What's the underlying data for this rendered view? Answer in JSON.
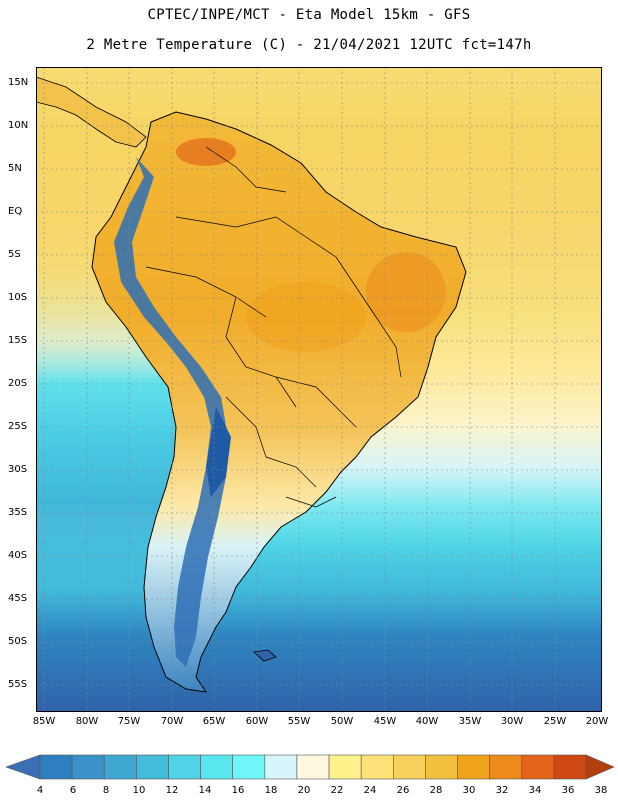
{
  "header": {
    "line1": "CPTEC/INPE/MCT  -   Eta Model 15km - GFS",
    "line2": "2 Metre Temperature (C) - 21/04/2021 12UTC fct=147h"
  },
  "map": {
    "lat_labels": [
      "15N",
      "10N",
      "5N",
      "EQ",
      "5S",
      "10S",
      "15S",
      "20S",
      "25S",
      "30S",
      "35S",
      "40S",
      "45S",
      "50S",
      "55S"
    ],
    "lon_labels": [
      "85W",
      "80W",
      "75W",
      "70W",
      "65W",
      "60W",
      "55W",
      "50W",
      "45W",
      "40W",
      "35W",
      "30W",
      "25W",
      "20W"
    ]
  },
  "colorbar": {
    "labels": [
      "4",
      "6",
      "8",
      "10",
      "12",
      "14",
      "16",
      "18",
      "20",
      "22",
      "24",
      "26",
      "28",
      "30",
      "32",
      "34",
      "36",
      "38"
    ],
    "colors": [
      "#3a6fb3",
      "#2d7fbf",
      "#3a92c9",
      "#3fa8d2",
      "#44bcdc",
      "#4fd3e6",
      "#5ae6ee",
      "#6ef6f8",
      "#d6f6fb",
      "#fff8e1",
      "#fff28c",
      "#fde27a",
      "#f7d05e",
      "#f2bf3f",
      "#f0a41c",
      "#ec8a1e",
      "#e4641b",
      "#cf4713",
      "#b23f0e"
    ]
  }
}
